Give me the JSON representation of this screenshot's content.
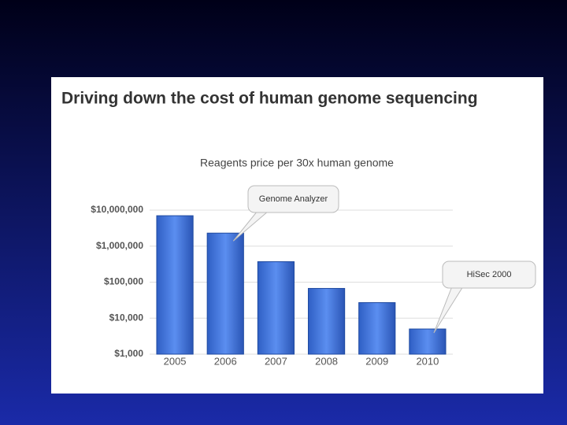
{
  "chart_data": {
    "type": "bar",
    "title": "Driving down the cost of human genome sequencing",
    "subtitle": "Reagents price per 30x human genome",
    "categories": [
      "2005",
      "2006",
      "2007",
      "2008",
      "2009",
      "2010"
    ],
    "values": [
      7000000,
      2300000,
      370000,
      67000,
      27000,
      5000
    ],
    "color": "#3b6fd6",
    "log_scale": true,
    "ylim": [
      1000,
      10000000
    ],
    "yticks": [
      {
        "value": 1000,
        "label": "$1,000"
      },
      {
        "value": 10000,
        "label": "$10,000"
      },
      {
        "value": 100000,
        "label": "$100,000"
      },
      {
        "value": 1000000,
        "label": "$1,000,000"
      },
      {
        "value": 10000000,
        "label": "$10,000,000"
      }
    ],
    "grid": true,
    "annotations": [
      "Genome Analyzer",
      "HiSec 2000"
    ]
  }
}
